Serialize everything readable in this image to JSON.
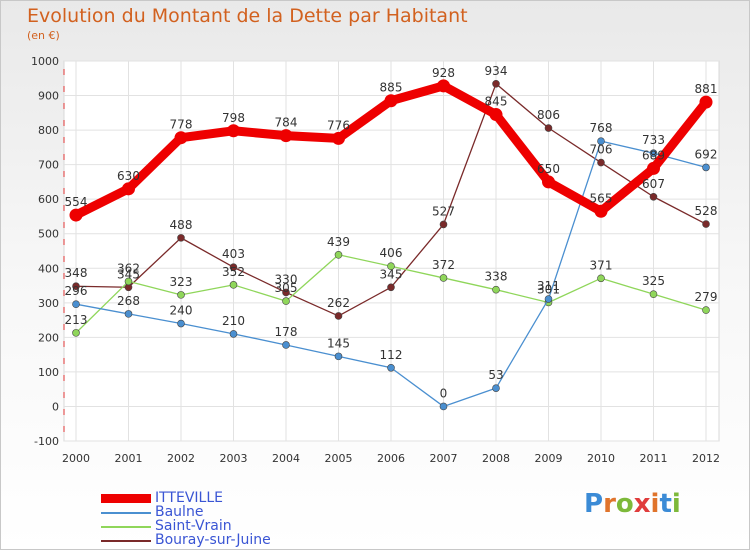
{
  "title": "Evolution du Montant de la Dette par Habitant",
  "subtitle": "(en €)",
  "logo": {
    "text": "Proxiti",
    "colors": [
      "#3b8bd6",
      "#e0742c",
      "#7db93a",
      "#e03c3c",
      "#e0742c",
      "#3b8bd6",
      "#7db93a"
    ]
  },
  "chart_data": {
    "type": "line",
    "x": [
      "2000",
      "2001",
      "2002",
      "2003",
      "2004",
      "2005",
      "2006",
      "2007",
      "2008",
      "2009",
      "2010",
      "2011",
      "2012"
    ],
    "ylim": [
      -100,
      1000
    ],
    "yticks": [
      "-100",
      "0",
      "100",
      "200",
      "300",
      "400",
      "500",
      "600",
      "700",
      "800",
      "900",
      "1000"
    ],
    "grid": true,
    "legend_position": "bottom-left",
    "series": [
      {
        "name": "ITTEVILLE",
        "color": "#ee0000",
        "values": [
          554,
          630,
          778,
          798,
          784,
          776,
          885,
          928,
          845,
          650,
          565,
          689,
          881
        ],
        "labels": [
          "554",
          "630",
          "778",
          "798",
          "784",
          "776",
          "885",
          "928",
          "845",
          "650",
          "565",
          "689",
          "881"
        ]
      },
      {
        "name": "Baulne",
        "color": "#4a8fd0",
        "values": [
          296,
          268,
          240,
          210,
          178,
          145,
          112,
          0,
          53,
          311,
          768,
          733,
          692
        ],
        "labels": [
          "296",
          "268",
          "240",
          "210",
          "178",
          "145",
          "112",
          "0",
          "53",
          "311",
          "768",
          "733",
          "692"
        ]
      },
      {
        "name": "Saint-Vrain",
        "color": "#8fd65a",
        "values": [
          213,
          362,
          323,
          352,
          305,
          439,
          406,
          372,
          338,
          301,
          371,
          325,
          279
        ],
        "labels": [
          "213",
          "362",
          "323",
          "352",
          "305",
          "439",
          "406",
          "372",
          "338",
          "301",
          "371",
          "325",
          "279"
        ]
      },
      {
        "name": "Bouray-sur-Juine",
        "color": "#7a2a2a",
        "values": [
          348,
          345,
          488,
          403,
          330,
          262,
          345,
          527,
          934,
          806,
          706,
          607,
          528
        ],
        "labels": [
          "348",
          "345",
          "488",
          "403",
          "330",
          "262",
          "345",
          "527",
          "934",
          "806",
          "706",
          "607",
          "528"
        ]
      }
    ]
  }
}
